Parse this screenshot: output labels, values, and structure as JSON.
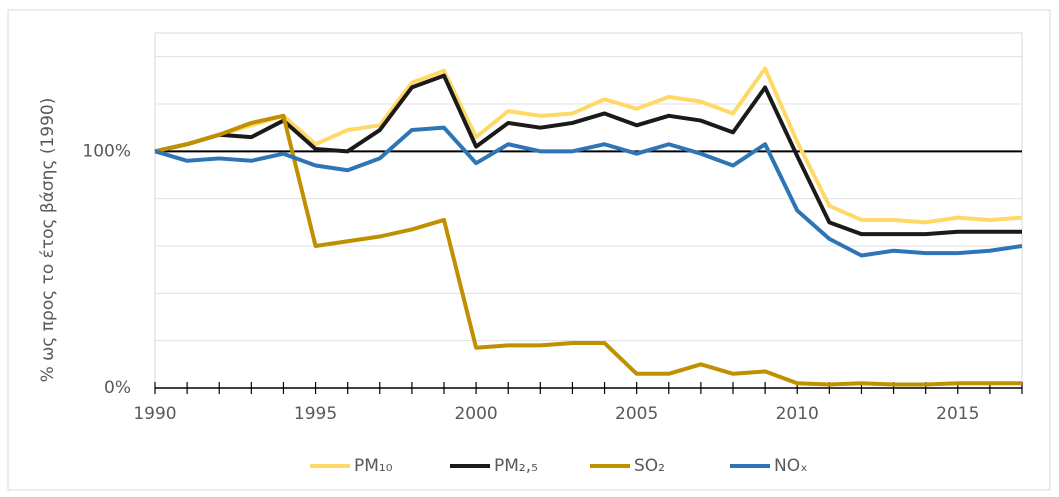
{
  "chart_data": {
    "type": "line",
    "y_label": "% ως προς το έτος βάσης (1990)",
    "x": [
      1990,
      1991,
      1992,
      1993,
      1994,
      1995,
      1996,
      1997,
      1998,
      1999,
      2000,
      2001,
      2002,
      2003,
      2004,
      2005,
      2006,
      2007,
      2008,
      2009,
      2010,
      2011,
      2012,
      2013,
      2014,
      2015,
      2016,
      2017
    ],
    "xlim": [
      1990,
      2017
    ],
    "xticks": [
      1990,
      1995,
      2000,
      2005,
      2010,
      2015
    ],
    "ylim": [
      0,
      150
    ],
    "yticks": [
      {
        "value": 0,
        "label": "0%"
      },
      {
        "value": 100,
        "label": "100%"
      }
    ],
    "ygrid": [
      20,
      40,
      60,
      80,
      120,
      140
    ],
    "reference_line": 100,
    "grid": true,
    "legend": "bottom",
    "series": [
      {
        "name": "PM₁₀",
        "color": "#FFD966",
        "values": [
          100,
          103,
          107,
          111,
          115,
          103,
          109,
          111,
          129,
          134,
          106,
          117,
          115,
          116,
          122,
          118,
          123,
          121,
          116,
          135,
          104,
          77,
          71,
          71,
          70,
          72,
          71,
          72
        ]
      },
      {
        "name": "PM₂,₅",
        "color": "#1a1a1a",
        "values": [
          100,
          103,
          107,
          106,
          113,
          101,
          100,
          109,
          127,
          132,
          102,
          112,
          110,
          112,
          116,
          111,
          115,
          113,
          108,
          127,
          98,
          70,
          65,
          65,
          65,
          66,
          66,
          66
        ]
      },
      {
        "name": "SO₂",
        "color": "#BF9000",
        "values": [
          100,
          103,
          107,
          112,
          115,
          60,
          62,
          64,
          67,
          71,
          17,
          18,
          18,
          19,
          19,
          6,
          6,
          10,
          6,
          7,
          2,
          1.5,
          2,
          1.5,
          1.5,
          2,
          2,
          2
        ]
      },
      {
        "name": "NOₓ",
        "color": "#2E75B6",
        "values": [
          100,
          96,
          97,
          96,
          99,
          94,
          92,
          97,
          109,
          110,
          95,
          103,
          100,
          100,
          103,
          99,
          103,
          99,
          94,
          103,
          75,
          63,
          56,
          58,
          57,
          57,
          58,
          60
        ]
      }
    ]
  }
}
